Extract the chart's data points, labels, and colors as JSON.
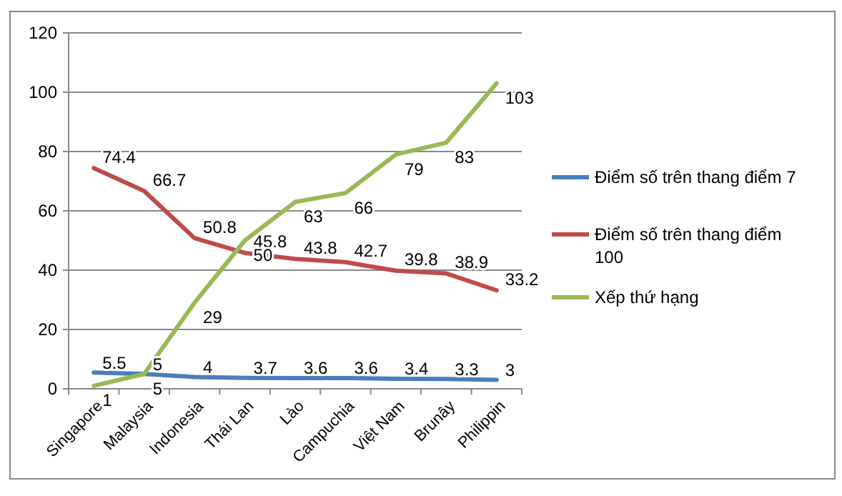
{
  "chart_data": {
    "type": "line",
    "categories": [
      "Singapore",
      "Malaysia",
      "Indonesia",
      "Thái Lan",
      "Lào",
      "Campuchia",
      "Việt Nam",
      "Brunây",
      "Philippin"
    ],
    "series": [
      {
        "name": "Điểm số trên thang điểm 7",
        "color": "#4a7ebb",
        "values": [
          5.5,
          5,
          4,
          3.7,
          3.6,
          3.6,
          3.4,
          3.3,
          3
        ]
      },
      {
        "name": "Điểm số trên thang điểm 100",
        "color": "#be4b48",
        "values": [
          74.4,
          66.7,
          50.8,
          45.8,
          43.8,
          42.7,
          39.8,
          38.9,
          33.2
        ]
      },
      {
        "name": "Xếp thứ hạng",
        "color": "#98b954",
        "values": [
          1,
          5,
          29,
          50,
          63,
          66,
          79,
          83,
          103
        ]
      }
    ],
    "ylim": [
      0,
      120
    ],
    "yticks": [
      0,
      20,
      40,
      60,
      80,
      100,
      120
    ],
    "grid": "y",
    "legend": "right",
    "data_labels": true,
    "marker": "none",
    "line_style": "solid"
  }
}
